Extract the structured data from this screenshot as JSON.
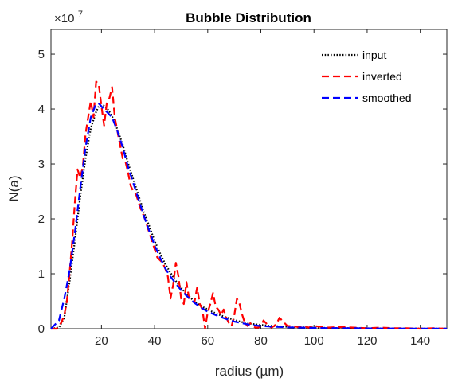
{
  "chart_data": {
    "type": "line",
    "title": "Bubble Distribution",
    "xlabel": "radius (µm)",
    "ylabel": "N(a)",
    "y_multiplier": {
      "base": "×10",
      "exponent": "7"
    },
    "xlim": [
      1,
      150
    ],
    "ylim": [
      0,
      5.45
    ],
    "xticks": [
      20,
      40,
      60,
      80,
      100,
      120,
      140
    ],
    "yticks": [
      0,
      1,
      2,
      3,
      4,
      5
    ],
    "legend_position": "top-right",
    "grid": false,
    "series": [
      {
        "name": "input",
        "color": "#000000",
        "style": "dotted",
        "x": [
          1,
          4,
          6,
          8,
          10,
          12,
          14,
          16,
          18,
          19,
          20,
          21,
          22,
          23,
          24,
          25,
          26,
          28,
          30,
          32,
          34,
          36,
          38,
          40,
          42,
          44,
          46,
          48,
          50,
          52,
          55,
          58,
          60,
          63,
          65,
          68,
          70,
          73,
          75,
          78,
          80,
          83,
          85,
          88,
          90,
          95,
          100,
          105,
          110,
          115,
          120,
          125,
          130,
          135,
          140,
          145,
          150
        ],
        "y": [
          0,
          0.02,
          0.2,
          0.85,
          1.6,
          2.4,
          3.1,
          3.65,
          3.95,
          4.05,
          4.07,
          4.06,
          4.02,
          3.95,
          3.87,
          3.75,
          3.63,
          3.35,
          3.02,
          2.72,
          2.42,
          2.12,
          1.87,
          1.6,
          1.38,
          1.18,
          1.02,
          0.87,
          0.75,
          0.63,
          0.5,
          0.4,
          0.35,
          0.28,
          0.24,
          0.19,
          0.16,
          0.12,
          0.1,
          0.08,
          0.07,
          0.055,
          0.05,
          0.04,
          0.035,
          0.025,
          0.02,
          0.015,
          0.012,
          0.01,
          0.008,
          0.006,
          0.005,
          0.004,
          0.003,
          0.002,
          0.002
        ]
      },
      {
        "name": "inverted",
        "color": "#ff0000",
        "style": "dashed",
        "x": [
          1,
          3,
          4,
          5,
          6,
          7,
          8,
          9,
          10,
          11,
          12,
          13,
          14,
          15,
          16,
          17,
          18,
          19,
          20,
          21,
          22,
          23,
          24,
          25,
          26,
          27,
          28,
          29,
          30,
          31,
          32,
          33,
          34,
          35,
          36,
          37,
          38,
          39,
          40,
          41,
          42,
          43,
          44,
          45,
          46,
          47,
          48,
          49,
          50,
          51,
          52,
          53,
          54,
          55,
          56,
          57,
          58,
          59,
          60,
          61,
          62,
          63,
          64,
          65,
          66,
          67,
          68,
          69,
          70,
          71,
          72,
          73,
          74,
          75,
          76,
          77,
          78,
          79,
          80,
          81,
          82,
          83,
          84,
          85,
          86,
          87,
          88,
          89,
          90,
          92,
          94,
          96,
          98,
          100,
          105,
          110,
          115,
          120,
          125,
          130,
          135,
          140,
          145,
          150
        ],
        "y": [
          0,
          0,
          0.05,
          0.12,
          0.25,
          0.5,
          1.0,
          1.6,
          2.3,
          2.9,
          2.75,
          2.95,
          3.55,
          3.85,
          4.15,
          3.85,
          4.5,
          4.45,
          4.05,
          3.7,
          4.1,
          4.2,
          4.4,
          3.85,
          3.6,
          3.35,
          3.1,
          3.05,
          2.85,
          2.6,
          2.5,
          2.45,
          2.3,
          2.15,
          2.05,
          1.9,
          1.75,
          1.6,
          1.45,
          1.3,
          1.25,
          1.2,
          1.1,
          0.95,
          0.55,
          0.8,
          1.2,
          0.95,
          0.55,
          0.45,
          0.85,
          0.55,
          0.5,
          0.48,
          0.75,
          0.45,
          0.35,
          0.0,
          0.3,
          0.45,
          0.65,
          0.4,
          0.35,
          0.25,
          0.35,
          0.2,
          0.1,
          0.05,
          0.25,
          0.55,
          0.45,
          0.25,
          0.1,
          0.05,
          0.1,
          0.05,
          0.02,
          0.02,
          0.05,
          0.15,
          0.1,
          0.05,
          0.02,
          0.05,
          0.1,
          0.2,
          0.15,
          0.1,
          0.05,
          0.05,
          0.03,
          0.05,
          0.02,
          0.05,
          0.02,
          0.03,
          0.02,
          0.01,
          0.02,
          0.01,
          0.01,
          0.0,
          0.01,
          0.0
        ]
      },
      {
        "name": "smoothed",
        "color": "#0000ff",
        "style": "dashed",
        "x": [
          1,
          4,
          6,
          8,
          10,
          12,
          14,
          16,
          18,
          19,
          20,
          21,
          22,
          24,
          26,
          28,
          30,
          32,
          34,
          36,
          38,
          40,
          42,
          44,
          46,
          48,
          50,
          52,
          55,
          58,
          60,
          63,
          65,
          68,
          70,
          73,
          75,
          78,
          80,
          83,
          85,
          88,
          90,
          95,
          100,
          105,
          110,
          115,
          120,
          125,
          130,
          135,
          140,
          145,
          150
        ],
        "y": [
          0,
          0.15,
          0.55,
          1.05,
          1.75,
          2.55,
          3.3,
          3.85,
          4.1,
          4.1,
          4.05,
          3.98,
          3.95,
          3.85,
          3.6,
          3.3,
          2.95,
          2.65,
          2.35,
          2.05,
          1.78,
          1.52,
          1.3,
          1.1,
          0.95,
          0.82,
          0.7,
          0.6,
          0.47,
          0.37,
          0.31,
          0.25,
          0.21,
          0.16,
          0.13,
          0.1,
          0.08,
          0.06,
          0.05,
          0.04,
          0.035,
          0.03,
          0.025,
          0.02,
          0.015,
          0.012,
          0.01,
          0.008,
          0.006,
          0.005,
          0.004,
          0.003,
          0.002,
          0.002,
          0.001
        ]
      }
    ]
  }
}
